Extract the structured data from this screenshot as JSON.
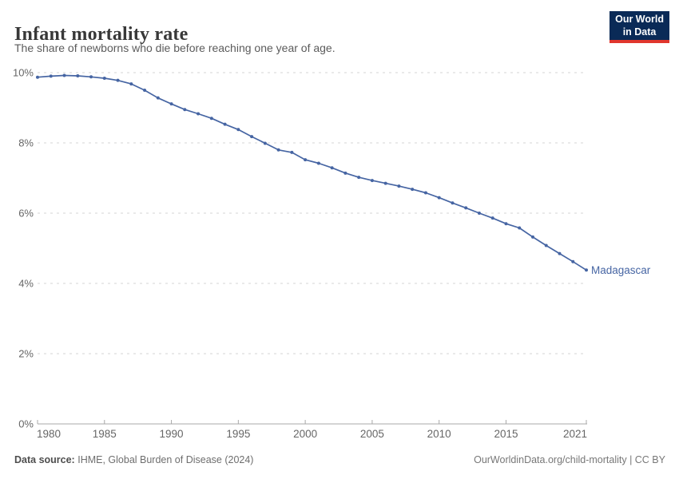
{
  "header": {
    "title": "Infant mortality rate",
    "subtitle": "The share of newborns who die before reaching one year of age.",
    "logo": {
      "line1": "Our World",
      "line2": "in Data"
    }
  },
  "footer": {
    "source_label": "Data source:",
    "source_text": "IHME, Global Burden of Disease (2024)",
    "attribution": "OurWorldinData.org/child-mortality | CC BY"
  },
  "chart_data": {
    "type": "line",
    "title": "Infant mortality rate",
    "subtitle": "The share of newborns who die before reaching one year of age.",
    "entity": "Madagascar",
    "unit": "%",
    "ylim": [
      0,
      10
    ],
    "grid": "horizontal-dashed",
    "legend_position": "line-end-label",
    "line_color": "#4665a3",
    "grid_color": "#d6d6d6",
    "axis_color": "#a8a8a8",
    "tick_label_color": "#666666",
    "yticks": [
      {
        "value": 0,
        "label": "0%"
      },
      {
        "value": 2,
        "label": "2%"
      },
      {
        "value": 4,
        "label": "4%"
      },
      {
        "value": 6,
        "label": "6%"
      },
      {
        "value": 8,
        "label": "8%"
      },
      {
        "value": 10,
        "label": "10%"
      }
    ],
    "xticks": [
      1980,
      1985,
      1990,
      1995,
      2000,
      2005,
      2010,
      2015,
      2021
    ],
    "x": [
      1980,
      1981,
      1982,
      1983,
      1984,
      1985,
      1986,
      1987,
      1988,
      1989,
      1990,
      1991,
      1992,
      1993,
      1994,
      1995,
      1996,
      1997,
      1998,
      1999,
      2000,
      2001,
      2002,
      2003,
      2004,
      2005,
      2006,
      2007,
      2008,
      2009,
      2010,
      2011,
      2012,
      2013,
      2014,
      2015,
      2016,
      2017,
      2018,
      2019,
      2020,
      2021
    ],
    "series": [
      {
        "name": "Madagascar",
        "color": "#4665a3",
        "values": [
          9.87,
          9.9,
          9.92,
          9.91,
          9.88,
          9.84,
          9.78,
          9.68,
          9.5,
          9.28,
          9.11,
          8.95,
          8.83,
          8.7,
          8.53,
          8.38,
          8.18,
          7.99,
          7.8,
          7.73,
          7.52,
          7.42,
          7.29,
          7.14,
          7.02,
          6.93,
          6.85,
          6.77,
          6.68,
          6.58,
          6.44,
          6.29,
          6.15,
          6.0,
          5.86,
          5.7,
          5.58,
          5.32,
          5.08,
          4.85,
          4.62,
          4.38
        ]
      }
    ]
  }
}
